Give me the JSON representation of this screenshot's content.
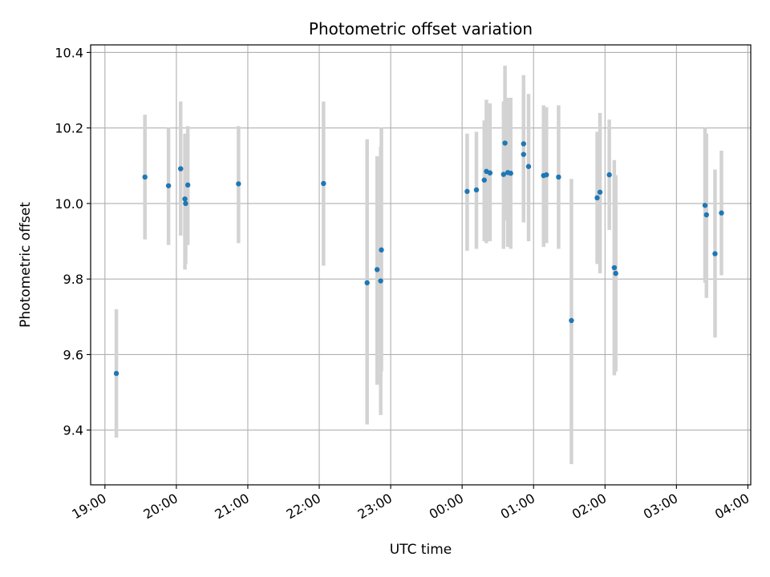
{
  "chart_data": {
    "type": "scatter",
    "title": "Photometric offset variation",
    "xlabel": "UTC time",
    "ylabel": "Photometric offset",
    "x_unit": "hours since 19:00 UTC",
    "xlim": [
      -0.2,
      9.04
    ],
    "ylim": [
      9.255,
      10.42
    ],
    "grid": true,
    "x_ticks": [
      {
        "value": 0,
        "label": "19:00"
      },
      {
        "value": 1,
        "label": "20:00"
      },
      {
        "value": 2,
        "label": "21:00"
      },
      {
        "value": 3,
        "label": "22:00"
      },
      {
        "value": 4,
        "label": "23:00"
      },
      {
        "value": 5,
        "label": "00:00"
      },
      {
        "value": 6,
        "label": "01:00"
      },
      {
        "value": 7,
        "label": "02:00"
      },
      {
        "value": 8,
        "label": "03:00"
      },
      {
        "value": 9,
        "label": "04:00"
      }
    ],
    "y_ticks": [
      {
        "value": 9.4,
        "label": "9.4"
      },
      {
        "value": 9.6,
        "label": "9.6"
      },
      {
        "value": 9.8,
        "label": "9.8"
      },
      {
        "value": 10.0,
        "label": "10.0"
      },
      {
        "value": 10.2,
        "label": "10.2"
      },
      {
        "value": 10.4,
        "label": "10.4"
      }
    ],
    "colors": {
      "point": "#1f77b4",
      "errorbar": "#d3d3d3",
      "grid": "#b0b0b0",
      "axis": "#000000"
    },
    "points": [
      {
        "x": 0.16,
        "y": 9.55,
        "lo": 9.38,
        "hi": 9.72
      },
      {
        "x": 0.56,
        "y": 10.07,
        "lo": 9.905,
        "hi": 10.235
      },
      {
        "x": 0.89,
        "y": 10.047,
        "lo": 9.89,
        "hi": 10.2
      },
      {
        "x": 1.06,
        "y": 10.092,
        "lo": 9.915,
        "hi": 10.27
      },
      {
        "x": 1.12,
        "y": 10.012,
        "lo": 9.825,
        "hi": 10.185
      },
      {
        "x": 1.13,
        "y": 10.0,
        "lo": 9.84,
        "hi": 10.16
      },
      {
        "x": 1.16,
        "y": 10.049,
        "lo": 9.89,
        "hi": 10.205
      },
      {
        "x": 1.87,
        "y": 10.052,
        "lo": 9.895,
        "hi": 10.205
      },
      {
        "x": 3.06,
        "y": 10.053,
        "lo": 9.835,
        "hi": 10.27
      },
      {
        "x": 3.67,
        "y": 9.79,
        "lo": 9.415,
        "hi": 10.17
      },
      {
        "x": 3.81,
        "y": 9.825,
        "lo": 9.52,
        "hi": 10.125
      },
      {
        "x": 3.87,
        "y": 9.877,
        "lo": 9.555,
        "hi": 10.2
      },
      {
        "x": 3.86,
        "y": 9.795,
        "lo": 9.44,
        "hi": 10.15
      },
      {
        "x": 5.07,
        "y": 10.032,
        "lo": 9.875,
        "hi": 10.185
      },
      {
        "x": 5.2,
        "y": 10.036,
        "lo": 9.88,
        "hi": 10.19
      },
      {
        "x": 5.31,
        "y": 10.062,
        "lo": 9.9,
        "hi": 10.22
      },
      {
        "x": 5.34,
        "y": 10.085,
        "lo": 9.895,
        "hi": 10.275
      },
      {
        "x": 5.39,
        "y": 10.081,
        "lo": 9.9,
        "hi": 10.265
      },
      {
        "x": 5.58,
        "y": 10.077,
        "lo": 9.88,
        "hi": 10.27
      },
      {
        "x": 5.6,
        "y": 10.16,
        "lo": 9.955,
        "hi": 10.365
      },
      {
        "x": 5.64,
        "y": 10.082,
        "lo": 9.885,
        "hi": 10.28
      },
      {
        "x": 5.68,
        "y": 10.08,
        "lo": 9.88,
        "hi": 10.28
      },
      {
        "x": 5.86,
        "y": 10.158,
        "lo": 9.975,
        "hi": 10.34
      },
      {
        "x": 5.86,
        "y": 10.13,
        "lo": 9.95,
        "hi": 10.31
      },
      {
        "x": 5.93,
        "y": 10.098,
        "lo": 9.9,
        "hi": 10.29
      },
      {
        "x": 6.14,
        "y": 10.074,
        "lo": 9.885,
        "hi": 10.26
      },
      {
        "x": 6.18,
        "y": 10.076,
        "lo": 9.895,
        "hi": 10.255
      },
      {
        "x": 6.35,
        "y": 10.07,
        "lo": 9.88,
        "hi": 10.26
      },
      {
        "x": 6.53,
        "y": 9.69,
        "lo": 9.31,
        "hi": 10.065
      },
      {
        "x": 6.89,
        "y": 10.015,
        "lo": 9.84,
        "hi": 10.19
      },
      {
        "x": 6.93,
        "y": 10.03,
        "lo": 9.815,
        "hi": 10.24
      },
      {
        "x": 7.06,
        "y": 10.076,
        "lo": 9.93,
        "hi": 10.222
      },
      {
        "x": 7.13,
        "y": 9.83,
        "lo": 9.545,
        "hi": 10.115
      },
      {
        "x": 7.15,
        "y": 9.815,
        "lo": 9.555,
        "hi": 10.075
      },
      {
        "x": 8.4,
        "y": 9.995,
        "lo": 9.79,
        "hi": 10.2
      },
      {
        "x": 8.42,
        "y": 9.97,
        "lo": 9.75,
        "hi": 10.185
      },
      {
        "x": 8.54,
        "y": 9.867,
        "lo": 9.645,
        "hi": 10.09
      },
      {
        "x": 8.63,
        "y": 9.975,
        "lo": 9.81,
        "hi": 10.14
      }
    ]
  }
}
